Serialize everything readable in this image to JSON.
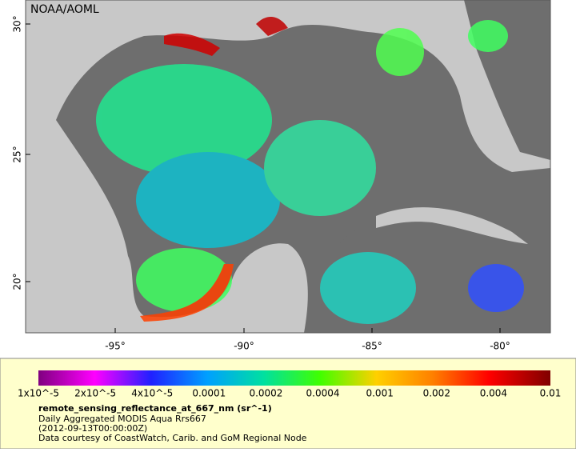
{
  "map": {
    "label": "NOAA/AOML",
    "lat_ticks": [
      "30°",
      "25°",
      "20°"
    ],
    "lon_ticks": [
      "-95°",
      "-90°",
      "-85°",
      "-80°"
    ]
  },
  "colorbar": {
    "labels": [
      "1x10^-5",
      "2x10^-5",
      "4x10^-5",
      "0.0001",
      "0.0002",
      "0.0004",
      "0.001",
      "0.002",
      "0.004",
      "0.01"
    ]
  },
  "caption": {
    "title": "remote_sensing_reflectance_at_667_nm (sr^-1)",
    "lines": [
      "Daily Aggregated MODIS Aqua Rrs667",
      "(2012-09-13T00:00:00Z)",
      "Data courtesy of CoastWatch, Carib. and GoM Regional Node"
    ]
  }
}
